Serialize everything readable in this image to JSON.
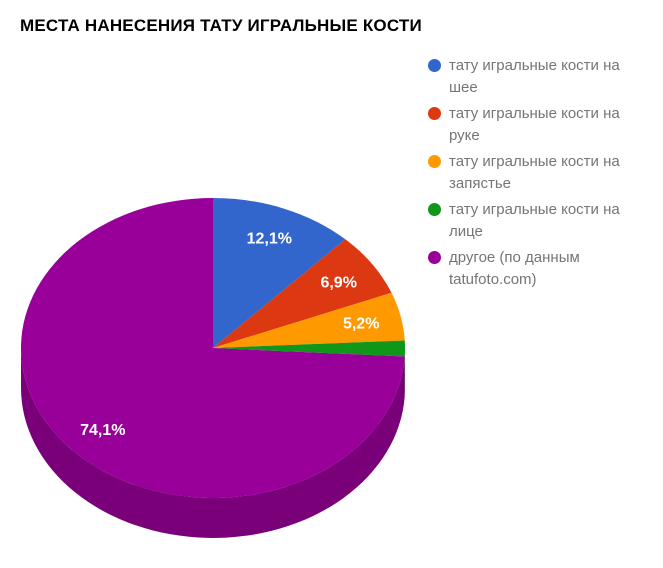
{
  "title": "МЕСТА НАНЕСЕНИЯ ТАТУ ИГРАЛЬНЫЕ КОСТИ",
  "chart_data": {
    "type": "pie",
    "is3d": true,
    "title": "МЕСТА НАНЕСЕНИЯ ТАТУ ИГРАЛЬНЫЕ КОСТИ",
    "unit": "%",
    "legend_position": "right",
    "background": "#FFFFFF",
    "slice_label_color": "#FFFFFF",
    "legend_text_color": "#757575",
    "slices": [
      {
        "label": "тату игральные кости на шее",
        "value": 12.1,
        "display_label": "12,1%",
        "color": "#3366CC"
      },
      {
        "label": "тату игральные кости на руке",
        "value": 6.9,
        "display_label": "6,9%",
        "color": "#DC3912"
      },
      {
        "label": "тату игральные кости на запястье",
        "value": 5.2,
        "display_label": "5,2%",
        "color": "#FF9900"
      },
      {
        "label": "тату игральные кости на лице",
        "value": 1.7,
        "display_label": "",
        "color": "#109618"
      },
      {
        "label": "другое (по данным tatufoto.com)",
        "value": 74.1,
        "display_label": "74,1%",
        "color": "#990099"
      }
    ]
  }
}
